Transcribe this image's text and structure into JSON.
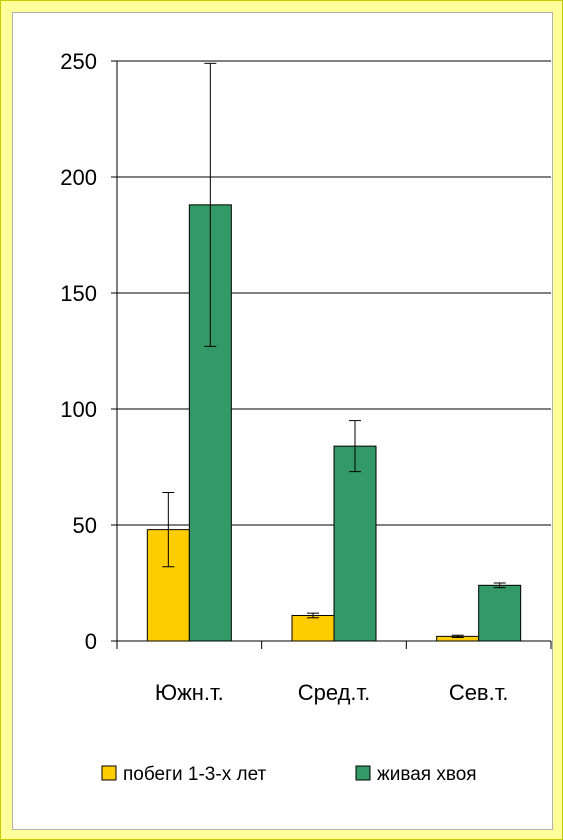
{
  "chart_data": {
    "type": "bar",
    "categories": [
      "Южн.т.",
      "Сред.т.",
      "Сев.т."
    ],
    "series": [
      {
        "name": "побеги 1-3-х лет",
        "values": [
          48,
          11,
          2
        ],
        "error": [
          16,
          1,
          0.5
        ],
        "color": "#ffcc00"
      },
      {
        "name": "живая хвоя",
        "values": [
          188,
          84,
          24
        ],
        "error": [
          61,
          11,
          1
        ],
        "color": "#339966"
      }
    ],
    "ylim": [
      0,
      250
    ],
    "yticks": [
      0,
      50,
      100,
      150,
      200,
      250
    ],
    "ytick_labels": [
      "0",
      "50",
      "100",
      "150",
      "200",
      "250"
    ],
    "grid": true,
    "legend_position": "bottom",
    "title": "",
    "xlabel": "",
    "ylabel": ""
  },
  "colors": {
    "frame_background": "#ffff99",
    "plot_background": "#ffffff",
    "bar_outline": "#000000"
  }
}
